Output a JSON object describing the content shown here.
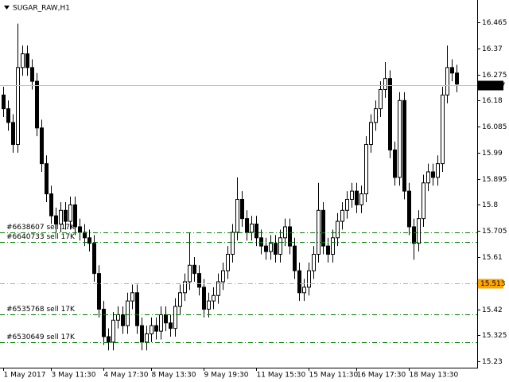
{
  "chart_data": {
    "type": "candlestick",
    "title": "SUGAR_RAW,H1",
    "categories": [
      "1 May 2017",
      null,
      null,
      null,
      null,
      null,
      null,
      null,
      null,
      null,
      "3 May 11:30",
      null,
      null,
      null,
      null,
      null,
      null,
      null,
      null,
      null,
      null,
      "4 May 17:30",
      null,
      null,
      null,
      null,
      null,
      null,
      null,
      null,
      null,
      "8 May 13:30",
      null,
      null,
      null,
      null,
      null,
      null,
      null,
      null,
      null,
      null,
      "9 May 19:30",
      null,
      null,
      null,
      null,
      null,
      null,
      null,
      null,
      null,
      null,
      "11 May 15:30",
      null,
      null,
      null,
      null,
      null,
      null,
      null,
      null,
      null,
      null,
      "15 May 11:30",
      null,
      null,
      null,
      null,
      null,
      null,
      null,
      null,
      null,
      "16 May 17:30",
      null,
      null,
      null,
      null,
      null,
      null,
      null,
      null,
      null,
      null,
      "18 May 13:30",
      null,
      null,
      null,
      null,
      null,
      null,
      null,
      null,
      null,
      null
    ],
    "open": [
      16.2,
      16.15,
      16.1,
      16.02,
      16.3,
      16.35,
      16.3,
      16.25,
      16.08,
      15.95,
      15.84,
      15.76,
      15.73,
      15.78,
      15.74,
      15.8,
      15.72,
      15.7,
      15.68,
      15.66,
      15.55,
      15.42,
      15.32,
      15.3,
      15.38,
      15.4,
      15.36,
      15.45,
      15.48,
      15.36,
      15.3,
      15.33,
      15.36,
      15.34,
      15.4,
      15.37,
      15.35,
      15.43,
      15.48,
      15.52,
      15.58,
      15.55,
      15.5,
      15.42,
      15.45,
      15.47,
      15.52,
      15.56,
      15.62,
      15.7,
      15.82,
      15.75,
      15.7,
      15.73,
      15.68,
      15.65,
      15.63,
      15.66,
      15.62,
      15.68,
      15.72,
      15.65,
      15.56,
      15.48,
      15.5,
      15.56,
      15.62,
      15.78,
      15.65,
      15.62,
      15.68,
      15.74,
      15.78,
      15.82,
      15.85,
      15.8,
      15.84,
      16.02,
      16.1,
      16.15,
      16.22,
      16.26,
      16.0,
      15.9,
      16.18,
      15.85,
      15.72,
      15.66,
      15.75,
      15.88,
      15.92,
      15.9,
      15.95,
      16.2,
      16.3,
      16.28
    ],
    "high": [
      16.23,
      16.18,
      16.13,
      16.46,
      16.38,
      16.38,
      16.33,
      16.28,
      16.11,
      15.98,
      15.87,
      15.79,
      15.81,
      15.81,
      15.83,
      15.83,
      15.75,
      15.73,
      15.71,
      15.69,
      15.58,
      15.45,
      15.35,
      15.41,
      15.43,
      15.43,
      15.48,
      15.51,
      15.51,
      15.39,
      15.36,
      15.39,
      15.39,
      15.43,
      15.43,
      15.4,
      15.46,
      15.51,
      15.55,
      15.7,
      15.61,
      15.58,
      15.53,
      15.48,
      15.5,
      15.55,
      15.59,
      15.65,
      15.73,
      15.9,
      15.85,
      15.78,
      15.76,
      15.76,
      15.71,
      15.68,
      15.69,
      15.69,
      15.71,
      15.75,
      15.75,
      15.68,
      15.59,
      15.53,
      15.59,
      15.65,
      15.88,
      15.81,
      15.68,
      15.71,
      15.77,
      15.81,
      15.85,
      15.88,
      15.88,
      15.87,
      16.05,
      16.13,
      16.18,
      16.25,
      16.32,
      16.29,
      16.03,
      16.21,
      16.21,
      15.88,
      15.75,
      15.78,
      15.91,
      15.95,
      15.95,
      15.98,
      16.23,
      16.38,
      16.33,
      16.31
    ],
    "low": [
      16.12,
      16.07,
      15.99,
      15.99,
      16.27,
      16.27,
      16.22,
      16.05,
      15.92,
      15.81,
      15.73,
      15.7,
      15.7,
      15.71,
      15.71,
      15.69,
      15.67,
      15.65,
      15.63,
      15.52,
      15.39,
      15.29,
      15.27,
      15.27,
      15.35,
      15.33,
      15.33,
      15.42,
      15.33,
      15.27,
      15.27,
      15.3,
      15.31,
      15.31,
      15.34,
      15.32,
      15.32,
      15.4,
      15.45,
      15.49,
      15.52,
      15.47,
      15.39,
      15.39,
      15.42,
      15.44,
      15.49,
      15.53,
      15.59,
      15.67,
      15.72,
      15.67,
      15.67,
      15.65,
      15.62,
      15.6,
      15.6,
      15.59,
      15.59,
      15.65,
      15.62,
      15.53,
      15.45,
      15.45,
      15.47,
      15.53,
      15.59,
      15.62,
      15.59,
      15.59,
      15.65,
      15.71,
      15.75,
      15.79,
      15.77,
      15.77,
      15.81,
      15.99,
      16.07,
      16.12,
      16.19,
      15.97,
      15.87,
      15.87,
      15.82,
      15.69,
      15.6,
      15.63,
      15.72,
      15.85,
      15.87,
      15.87,
      15.92,
      16.17,
      16.25,
      16.21
    ],
    "close": [
      16.15,
      16.1,
      16.02,
      16.3,
      16.35,
      16.3,
      16.25,
      16.08,
      15.95,
      15.84,
      15.76,
      15.73,
      15.78,
      15.74,
      15.8,
      15.72,
      15.7,
      15.68,
      15.66,
      15.55,
      15.42,
      15.32,
      15.3,
      15.38,
      15.4,
      15.36,
      15.45,
      15.48,
      15.36,
      15.3,
      15.33,
      15.36,
      15.34,
      15.4,
      15.37,
      15.35,
      15.43,
      15.48,
      15.52,
      15.58,
      15.55,
      15.5,
      15.42,
      15.45,
      15.47,
      15.52,
      15.56,
      15.62,
      15.7,
      15.82,
      15.75,
      15.7,
      15.73,
      15.68,
      15.65,
      15.63,
      15.66,
      15.62,
      15.68,
      15.72,
      15.65,
      15.56,
      15.48,
      15.5,
      15.56,
      15.62,
      15.78,
      15.65,
      15.62,
      15.68,
      15.74,
      15.78,
      15.82,
      15.85,
      15.8,
      15.84,
      16.02,
      16.1,
      16.15,
      16.22,
      16.26,
      16.0,
      15.9,
      16.18,
      15.85,
      15.72,
      15.66,
      15.75,
      15.88,
      15.92,
      15.9,
      15.95,
      16.2,
      16.3,
      16.28,
      16.24
    ],
    "ylim": [
      15.207,
      16.546
    ],
    "yticks": [
      15.23,
      15.325,
      15.42,
      15.61,
      15.705,
      15.8,
      15.895,
      15.99,
      16.085,
      16.18,
      16.275,
      16.37,
      16.465
    ],
    "up_color": "#ffffff",
    "down_color": "#000000",
    "current_price": 16.237,
    "alert_price": 15.513,
    "orders": [
      {
        "label": "#6638607 sell 17K",
        "value": 15.7,
        "color": "#008000"
      },
      {
        "label": "#6640733 sell 17K",
        "value": 15.665,
        "color": "#008000"
      },
      {
        "label": "#6535768 sell 17K",
        "value": 15.4,
        "color": "#008000"
      },
      {
        "label": "#6530649 sell 17K",
        "value": 15.3,
        "color": "#008000"
      }
    ]
  }
}
